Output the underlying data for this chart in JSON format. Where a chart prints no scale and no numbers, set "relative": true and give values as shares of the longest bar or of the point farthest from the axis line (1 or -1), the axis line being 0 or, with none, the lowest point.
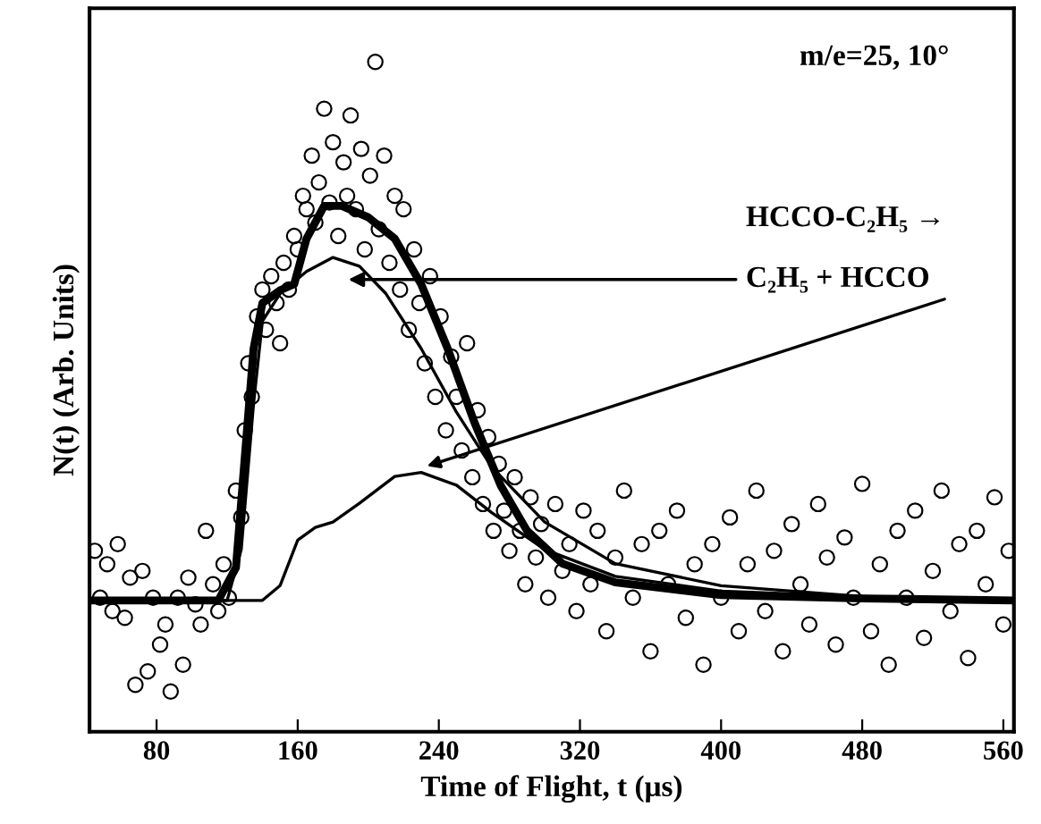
{
  "chart_data": {
    "type": "scatter",
    "relative": true,
    "xlabel": "Time of Flight, t (μs)",
    "ylabel": "N(t) (Arb. Units)",
    "xlim": [
      42,
      566
    ],
    "xticks": [
      80,
      160,
      240,
      320,
      400,
      480,
      560
    ],
    "grid": false,
    "legend": false,
    "annotations": [
      "m/e=25, 10°",
      "HCCO-C₂H₅ →",
      "C₂H₅ + HCCO"
    ],
    "series": [
      {
        "marker": "circle",
        "color": "#000000",
        "x": [
          45,
          48,
          52,
          55,
          58,
          62,
          65,
          68,
          72,
          75,
          78,
          82,
          85,
          88,
          92,
          95,
          98,
          102,
          105,
          108,
          112,
          115,
          118,
          121,
          125,
          128,
          130,
          132,
          134,
          137,
          140,
          142,
          145,
          148,
          150,
          152,
          155,
          158,
          160,
          163,
          165,
          168,
          170,
          172,
          175,
          178,
          180,
          183,
          186,
          188,
          190,
          193,
          196,
          198,
          201,
          204,
          206,
          209,
          212,
          215,
          218,
          220,
          223,
          226,
          229,
          232,
          235,
          238,
          241,
          244,
          247,
          250,
          253,
          256,
          259,
          262,
          265,
          268,
          271,
          274,
          277,
          280,
          283,
          286,
          289,
          292,
          295,
          298,
          302,
          306,
          310,
          314,
          318,
          322,
          326,
          330,
          335,
          340,
          345,
          350,
          355,
          360,
          365,
          370,
          375,
          380,
          385,
          390,
          395,
          400,
          405,
          410,
          415,
          420,
          425,
          430,
          435,
          440,
          445,
          450,
          455,
          460,
          465,
          470,
          475,
          480,
          485,
          490,
          495,
          500,
          505,
          510,
          515,
          520,
          525,
          530,
          535,
          540,
          545,
          550,
          555,
          560,
          563
        ],
        "values": [
          0.27,
          0.2,
          0.25,
          0.18,
          0.28,
          0.17,
          0.23,
          0.07,
          0.24,
          0.09,
          0.2,
          0.13,
          0.16,
          0.06,
          0.2,
          0.1,
          0.23,
          0.19,
          0.16,
          0.3,
          0.22,
          0.18,
          0.25,
          0.2,
          0.36,
          0.32,
          0.45,
          0.55,
          0.5,
          0.62,
          0.66,
          0.6,
          0.68,
          0.64,
          0.58,
          0.7,
          0.66,
          0.74,
          0.72,
          0.8,
          0.78,
          0.86,
          0.76,
          0.82,
          0.93,
          0.79,
          0.88,
          0.74,
          0.85,
          0.8,
          0.92,
          0.78,
          0.87,
          0.72,
          0.83,
          1.0,
          0.75,
          0.86,
          0.7,
          0.8,
          0.66,
          0.78,
          0.6,
          0.72,
          0.64,
          0.55,
          0.68,
          0.5,
          0.62,
          0.45,
          0.56,
          0.5,
          0.42,
          0.58,
          0.38,
          0.48,
          0.34,
          0.44,
          0.3,
          0.4,
          0.33,
          0.27,
          0.38,
          0.3,
          0.22,
          0.35,
          0.26,
          0.31,
          0.2,
          0.34,
          0.24,
          0.28,
          0.18,
          0.33,
          0.22,
          0.3,
          0.15,
          0.26,
          0.36,
          0.2,
          0.28,
          0.12,
          0.3,
          0.22,
          0.33,
          0.17,
          0.25,
          0.1,
          0.28,
          0.2,
          0.32,
          0.15,
          0.25,
          0.36,
          0.18,
          0.27,
          0.12,
          0.31,
          0.22,
          0.16,
          0.34,
          0.26,
          0.13,
          0.29,
          0.2,
          0.37,
          0.15,
          0.25,
          0.1,
          0.3,
          0.2,
          0.33,
          0.14,
          0.24,
          0.36,
          0.18,
          0.28,
          0.11,
          0.3,
          0.22,
          0.35,
          0.16,
          0.27
        ]
      },
      {
        "type": "line",
        "line_style": "solid",
        "marker": "none",
        "color": "#000000",
        "x": [
          42,
          115,
          125,
          130,
          135,
          140,
          150,
          158,
          165,
          175,
          185,
          200,
          215,
          230,
          245,
          260,
          275,
          290,
          310,
          340,
          400,
          480,
          566
        ],
        "values": [
          0.196,
          0.196,
          0.245,
          0.409,
          0.572,
          0.64,
          0.659,
          0.668,
          0.736,
          0.785,
          0.785,
          0.768,
          0.736,
          0.668,
          0.572,
          0.463,
          0.368,
          0.3,
          0.251,
          0.223,
          0.204,
          0.199,
          0.196
        ]
      },
      {
        "type": "line",
        "line_style": "solid",
        "marker": "none",
        "color": "#000000",
        "x": [
          42,
          120,
          128,
          135,
          140,
          150,
          165,
          180,
          195,
          210,
          230,
          250,
          270,
          300,
          340,
          400,
          480,
          566
        ],
        "values": [
          0.196,
          0.196,
          0.272,
          0.49,
          0.613,
          0.654,
          0.687,
          0.708,
          0.695,
          0.654,
          0.572,
          0.477,
          0.395,
          0.313,
          0.251,
          0.218,
          0.202,
          0.196
        ]
      },
      {
        "type": "line",
        "line_style": "solid",
        "marker": "none",
        "color": "#000000",
        "x": [
          42,
          140,
          150,
          160,
          170,
          180,
          195,
          215,
          230,
          250,
          270,
          300,
          340,
          400,
          480,
          566
        ],
        "values": [
          0.196,
          0.196,
          0.218,
          0.286,
          0.305,
          0.313,
          0.341,
          0.381,
          0.387,
          0.368,
          0.327,
          0.272,
          0.232,
          0.21,
          0.202,
          0.196
        ]
      }
    ]
  }
}
